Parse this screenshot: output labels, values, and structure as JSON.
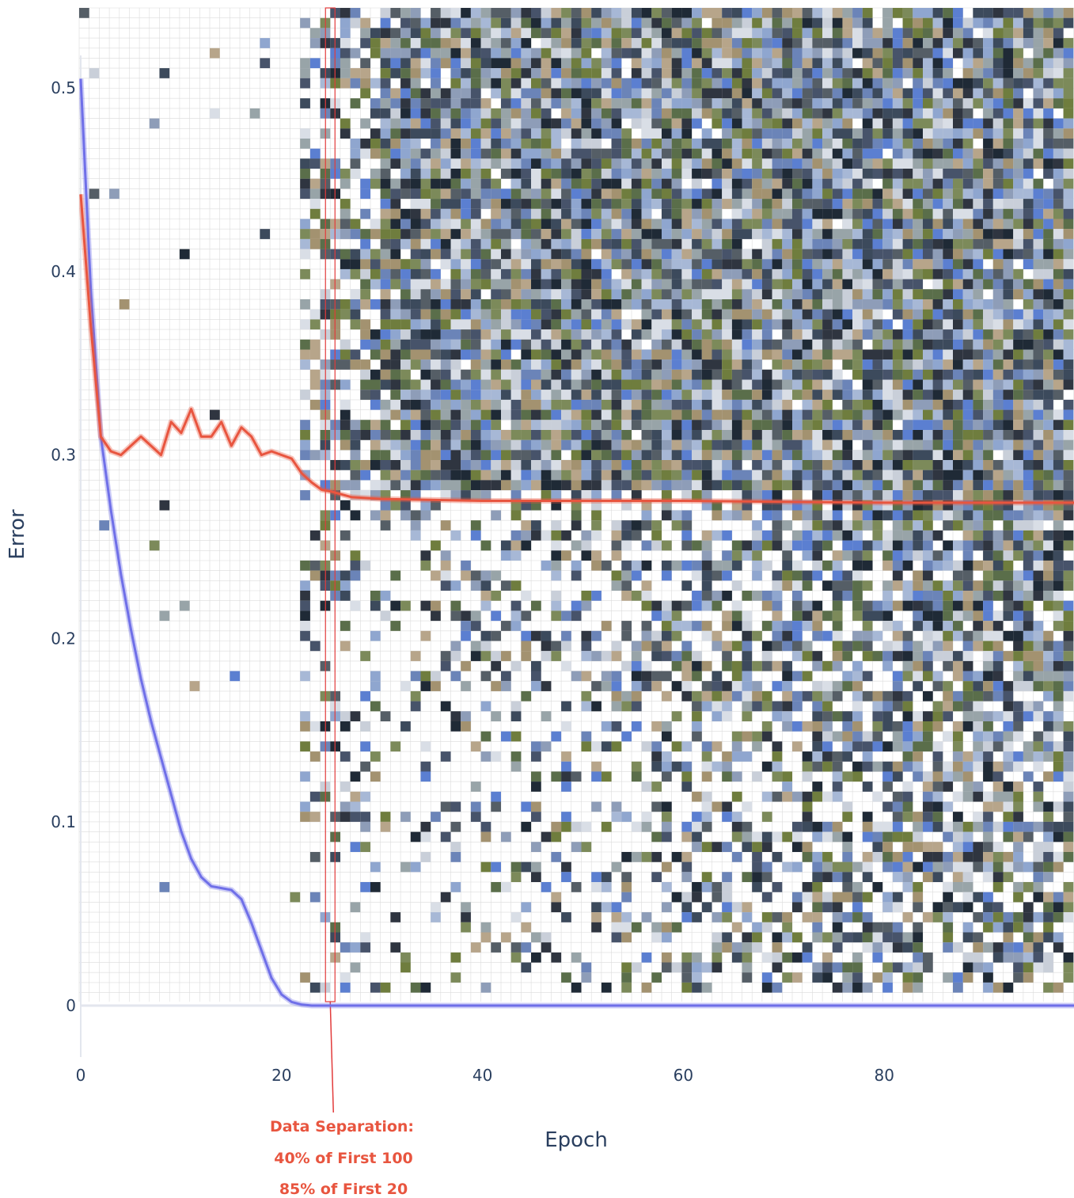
{
  "chart_data": {
    "type": "line",
    "title": "",
    "xlabel": "Epoch",
    "ylabel": "Error",
    "xlim": [
      0,
      99
    ],
    "ylim": [
      0,
      0.56
    ],
    "x_ticks": [
      "0",
      "20",
      "40",
      "60",
      "80"
    ],
    "x_tick_values": [
      0,
      20,
      40,
      60,
      80
    ],
    "y_ticks": [
      "0",
      "0.1",
      "0.2",
      "0.3",
      "0.4",
      "0.5"
    ],
    "y_tick_values": [
      0,
      0.1,
      0.2,
      0.3,
      0.4,
      0.5
    ],
    "grid": true,
    "legend": "none",
    "colors": {
      "blue_line": "#6f6fe8",
      "red_line": "#e8553f",
      "grid": "#dcdcdc",
      "text": "#2a3f5f"
    },
    "series": [
      {
        "color": "#6f6fe8",
        "x": [
          0,
          1,
          2,
          3,
          4,
          5,
          6,
          7,
          8,
          9,
          10,
          11,
          12,
          13,
          14,
          15,
          16,
          17,
          18,
          19,
          20,
          21,
          22,
          23,
          25,
          30,
          40,
          60,
          80,
          99
        ],
        "values": [
          0.505,
          0.39,
          0.31,
          0.27,
          0.235,
          0.205,
          0.178,
          0.155,
          0.135,
          0.115,
          0.095,
          0.08,
          0.07,
          0.065,
          0.064,
          0.063,
          0.058,
          0.045,
          0.03,
          0.015,
          0.006,
          0.002,
          0.0005,
          0.0,
          0.0,
          0.0,
          0.0,
          0.0,
          0.0,
          0.0
        ]
      },
      {
        "color": "#e8553f",
        "x": [
          0,
          1,
          2,
          3,
          4,
          5,
          6,
          7,
          8,
          9,
          10,
          11,
          12,
          13,
          14,
          15,
          16,
          17,
          18,
          19,
          20,
          21,
          22,
          23,
          24,
          25,
          27,
          30,
          40,
          60,
          80,
          99
        ],
        "values": [
          0.442,
          0.37,
          0.31,
          0.302,
          0.3,
          0.305,
          0.31,
          0.305,
          0.3,
          0.318,
          0.312,
          0.325,
          0.31,
          0.31,
          0.318,
          0.305,
          0.315,
          0.31,
          0.3,
          0.302,
          0.3,
          0.298,
          0.29,
          0.285,
          0.281,
          0.28,
          0.277,
          0.276,
          0.275,
          0.275,
          0.274,
          0.274
        ]
      }
    ],
    "separation_epoch": 25,
    "annotations": [
      "Data Separation:",
      "40% of First 100",
      "85% of First 20"
    ]
  }
}
